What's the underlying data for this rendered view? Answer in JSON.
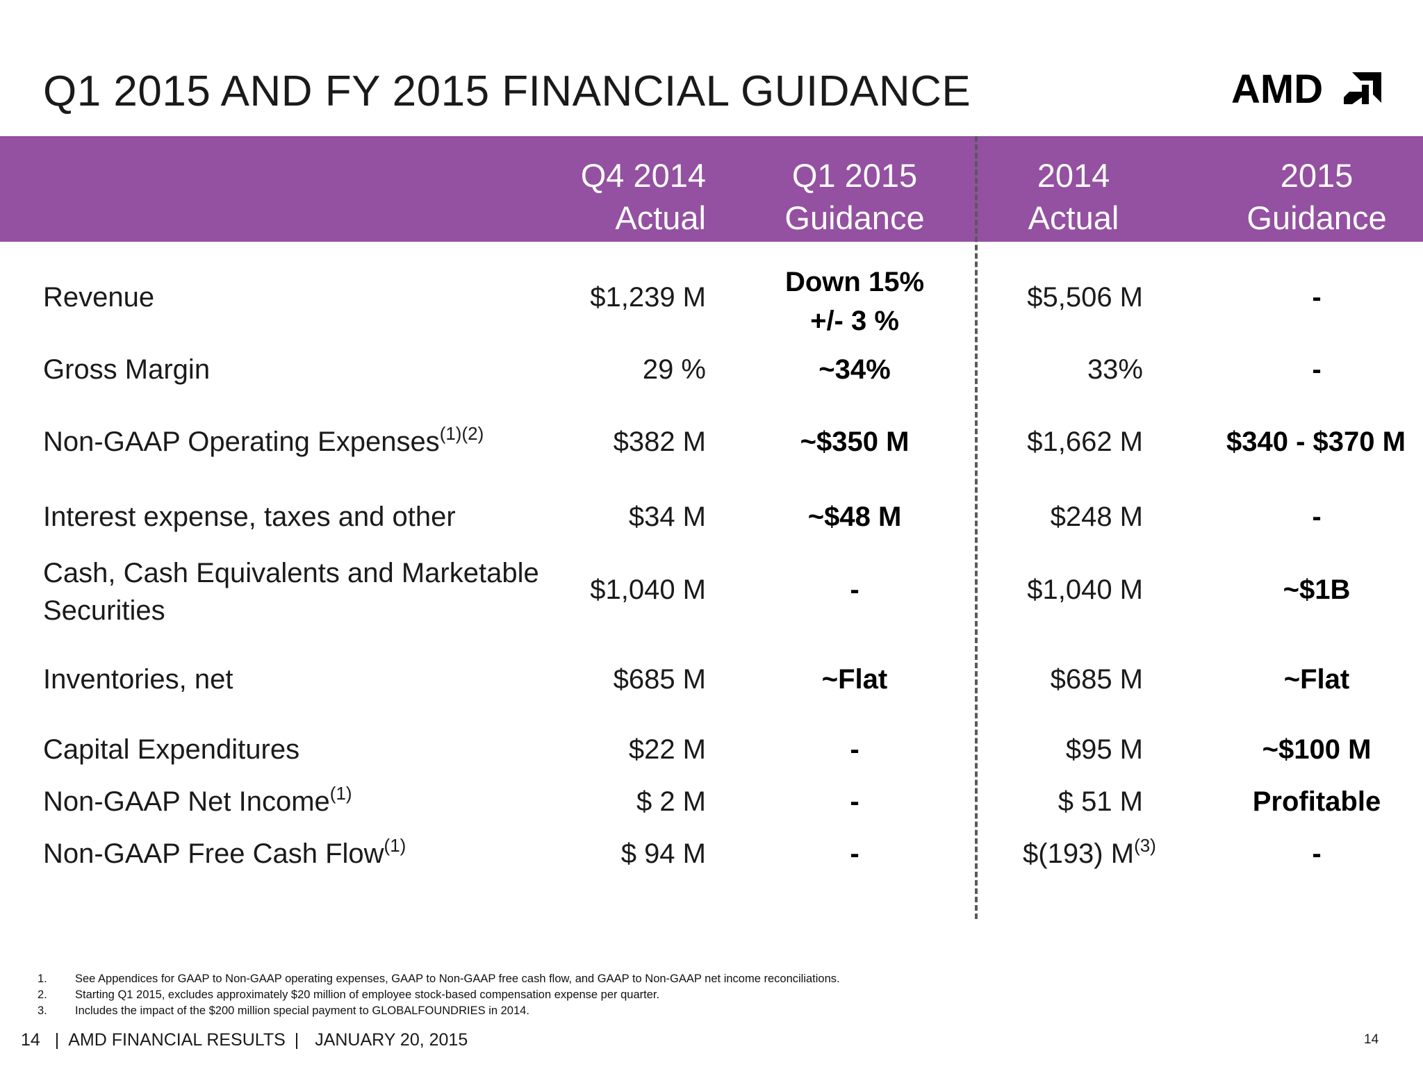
{
  "title": "Q1 2015 AND FY 2015 FINANCIAL GUIDANCE",
  "logo_text": "AMD",
  "colors": {
    "header_band": "#9450a1",
    "header_text": "#ffffff",
    "divider": "#5a5a5a"
  },
  "columns": [
    {
      "line1": "Q4 2014",
      "line2": "Actual"
    },
    {
      "line1": "Q1 2015",
      "line2": "Guidance"
    },
    {
      "line1": "2014",
      "line2": "Actual"
    },
    {
      "line1": "2015",
      "line2": "Guidance"
    }
  ],
  "rows": [
    {
      "label": "Revenue",
      "label_sup": "",
      "q4_2014": "$1,239 M",
      "q1_2015_line1": "Down 15%",
      "q1_2015_line2": "+/- 3 %",
      "fy_2014": "$5,506 M",
      "fy_2014_sup": "",
      "fy_2015": "-"
    },
    {
      "label": "Gross Margin",
      "label_sup": "",
      "q4_2014": "29 %",
      "q1_2015": "~34%",
      "fy_2014": "33%",
      "fy_2014_sup": "",
      "fy_2015": "-"
    },
    {
      "label": "Non-GAAP Operating Expenses",
      "label_sup": "(1)(2)",
      "q4_2014": "$382 M",
      "q1_2015": "~$350 M",
      "fy_2014": "$1,662 M",
      "fy_2014_sup": "",
      "fy_2015": "$340 - $370 M"
    },
    {
      "label": "Interest expense, taxes and other",
      "label_sup": "",
      "q4_2014": "$34 M",
      "q1_2015": "~$48 M",
      "fy_2014": "$248 M",
      "fy_2014_sup": "",
      "fy_2015": "-"
    },
    {
      "label_line1": "Cash, Cash Equivalents and Marketable",
      "label_line2": "Securities",
      "label_sup": "",
      "q4_2014": "$1,040 M",
      "q1_2015": "-",
      "fy_2014": "$1,040 M",
      "fy_2014_sup": "",
      "fy_2015": "~$1B"
    },
    {
      "label": "Inventories, net",
      "label_sup": "",
      "q4_2014": "$685 M",
      "q1_2015": "~Flat",
      "fy_2014": "$685 M",
      "fy_2014_sup": "",
      "fy_2015": "~Flat"
    },
    {
      "label": "Capital Expenditures",
      "label_sup": "",
      "q4_2014": "$22 M",
      "q1_2015": "-",
      "fy_2014": "$95 M",
      "fy_2014_sup": "",
      "fy_2015": "~$100 M"
    },
    {
      "label": "Non-GAAP Net Income",
      "label_sup": "(1)",
      "q4_2014": "$ 2 M",
      "q1_2015": "-",
      "fy_2014": "$ 51 M",
      "fy_2014_sup": "",
      "fy_2015": "Profitable"
    },
    {
      "label": "Non-GAAP Free Cash Flow",
      "label_sup": "(1)",
      "q4_2014": "$ 94 M",
      "q1_2015": "-",
      "fy_2014": "$(193) M",
      "fy_2014_sup": "(3)",
      "fy_2015": "-"
    }
  ],
  "footnotes": [
    {
      "num": "1.",
      "text": "See Appendices for GAAP to Non-GAAP operating expenses, GAAP to Non-GAAP free cash flow, and GAAP to Non-GAAP net income reconciliations."
    },
    {
      "num": "2.",
      "text": "Starting Q1 2015, excludes approximately $20 million of employee stock-based compensation expense per quarter."
    },
    {
      "num": "3.",
      "text": "Includes the impact of the $200 million special payment to GLOBALFOUNDRIES in 2014."
    }
  ],
  "footer": {
    "page": "14",
    "sep1": "|",
    "deck": "AMD FINANCIAL RESULTS",
    "sep2": "|",
    "date": "JANUARY 20, 2015"
  },
  "page_number": "14"
}
